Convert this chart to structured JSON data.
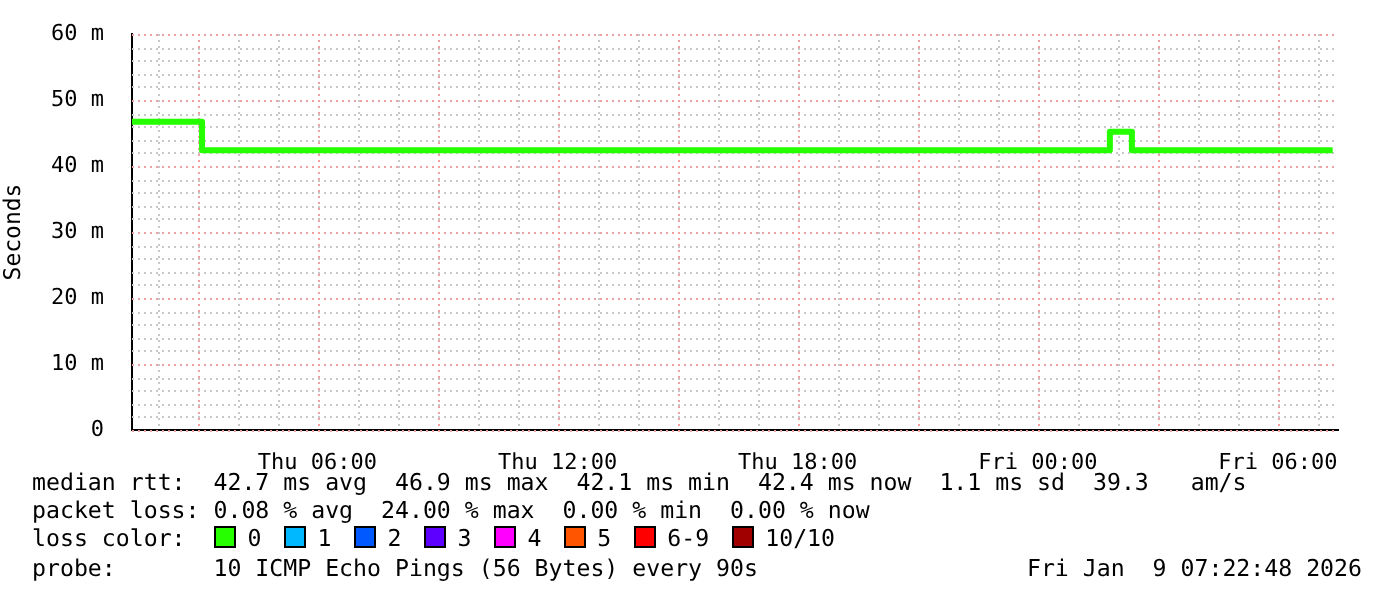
{
  "chart_data": {
    "type": "step",
    "ylabel": "Seconds",
    "legend_title": "loss color:",
    "legend": "bottom",
    "grid": true,
    "line_style": "solid",
    "marker": "none",
    "x": [
      "2026-01-08T01:22",
      "2026-01-08T03:07",
      "2026-01-09T01:48",
      "2026-01-09T02:21",
      "2026-01-09T07:22"
    ],
    "xlim": [
      "2026-01-08T01:22",
      "2026-01-09T07:30"
    ],
    "xticks": [
      {
        "value": "2026-01-08T03:00",
        "label": null
      },
      {
        "value": "2026-01-08T06:00",
        "label": "Thu 06:00"
      },
      {
        "value": "2026-01-08T09:00",
        "label": null
      },
      {
        "value": "2026-01-08T12:00",
        "label": "Thu 12:00"
      },
      {
        "value": "2026-01-08T15:00",
        "label": null
      },
      {
        "value": "2026-01-08T18:00",
        "label": "Thu 18:00"
      },
      {
        "value": "2026-01-08T21:00",
        "label": null
      },
      {
        "value": "2026-01-09T00:00",
        "label": "Fri 00:00"
      },
      {
        "value": "2026-01-09T03:00",
        "label": null
      },
      {
        "value": "2026-01-09T06:00",
        "label": "Fri 06:00"
      }
    ],
    "ylim": [
      0,
      60
    ],
    "yticks": [
      0,
      {
        "value": 10,
        "label": "10 m"
      },
      {
        "value": 20,
        "label": "20 m"
      },
      {
        "value": 30,
        "label": "30 m"
      },
      {
        "value": 40,
        "label": "40 m"
      },
      {
        "value": 50,
        "label": "50 m"
      },
      {
        "value": 60,
        "label": "60 m"
      }
    ],
    "series": [
      {
        "name": "0",
        "color": "#26ff00",
        "values": [
          46.7,
          42.4,
          45.2,
          42.4,
          42.4
        ]
      },
      {
        "name": "1",
        "color": "#00b8ff",
        "values": [
          null,
          null,
          null,
          null,
          null
        ]
      },
      {
        "name": "2",
        "color": "#0059ff",
        "values": [
          null,
          null,
          null,
          null,
          null
        ]
      },
      {
        "name": "3",
        "color": "#5e00ff",
        "values": [
          null,
          null,
          null,
          null,
          null
        ]
      },
      {
        "name": "4",
        "color": "#ff00ff",
        "values": [
          null,
          null,
          null,
          null,
          null
        ]
      },
      {
        "name": "5",
        "color": "#ff5500",
        "values": [
          null,
          null,
          null,
          null,
          null
        ]
      },
      {
        "name": "6-9",
        "color": "#ff0000",
        "values": [
          null,
          null,
          null,
          null,
          null
        ]
      },
      {
        "name": "10/10",
        "color": "#a10000",
        "values": [
          null,
          null,
          null,
          null,
          null
        ]
      }
    ],
    "annotations": [
      "median rtt:  42.7 ms avg  46.9 ms max  42.1 ms min  42.4 ms now  1.1 ms sd  39.3   am/s",
      "packet loss: 0.08 % avg  24.00 % max  0.00 % min  0.00 % now",
      "probe:       10 ICMP Echo Pings (56 Bytes) every 90s",
      "Fri Jan  9 07:22:48 2026"
    ]
  }
}
